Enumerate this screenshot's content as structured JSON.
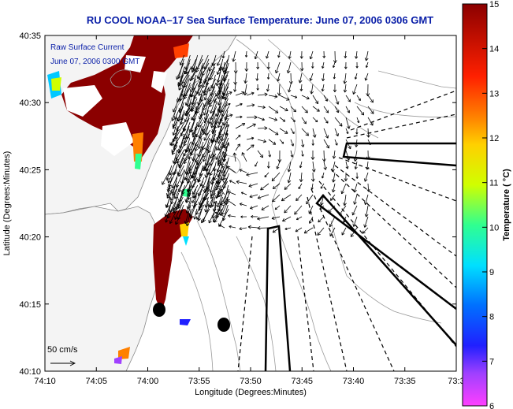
{
  "title": "RU COOL  NOAA–17  Sea Surface Temperature:  June 07, 2006 0306 GMT",
  "map": {
    "inset_line1": "Raw Surface Current",
    "inset_line2": "June 07, 2006 0300 GMT",
    "scale_label": "50 cm/s",
    "xlabel": "Longitude (Degrees:Minutes)",
    "ylabel": "Latitude (Degrees:Minutes)",
    "x_ticks": [
      "74:10",
      "74:05",
      "74:00",
      "73:55",
      "73:50",
      "73:45",
      "73:40",
      "73:35",
      "73:3"
    ],
    "y_ticks": [
      "40:35",
      "40:30",
      "40:25",
      "40:20",
      "40:15",
      "40:10"
    ]
  },
  "colorbar": {
    "label": "Temperature ( °C)",
    "ticks": [
      "15",
      "14",
      "13",
      "12",
      "11",
      "10",
      "9",
      "8",
      "7",
      "6"
    ],
    "range": [
      6,
      15
    ]
  },
  "colors": {
    "title": "#0a1fa8",
    "land": "#f5f5f5",
    "sst_warm": "#8b0000"
  }
}
